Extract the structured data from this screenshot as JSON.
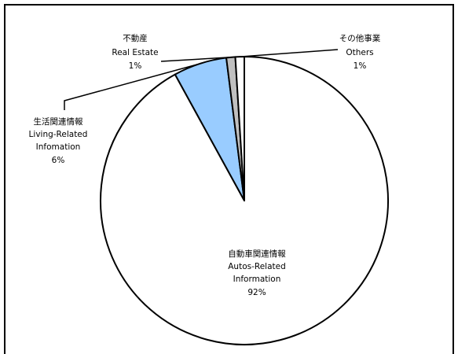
{
  "chart_data": {
    "type": "pie",
    "slices": [
      {
        "label_ja": "自動車関連情報",
        "label_en": [
          "Autos-Related",
          "Information"
        ],
        "percent_label": "92%",
        "value": 92,
        "color": "#ffffff"
      },
      {
        "label_ja": "生活関連情報",
        "label_en": [
          "Living-Related",
          "Infomation"
        ],
        "percent_label": "6%",
        "value": 6,
        "color": "#99ccff"
      },
      {
        "label_ja": "不動産",
        "label_en": [
          "Real Estate"
        ],
        "percent_label": "1%",
        "value": 1,
        "color": "#c0c0c0"
      },
      {
        "label_ja": "その他事業",
        "label_en": [
          "Others"
        ],
        "percent_label": "1%",
        "value": 1,
        "color": "#ffffff"
      }
    ]
  }
}
